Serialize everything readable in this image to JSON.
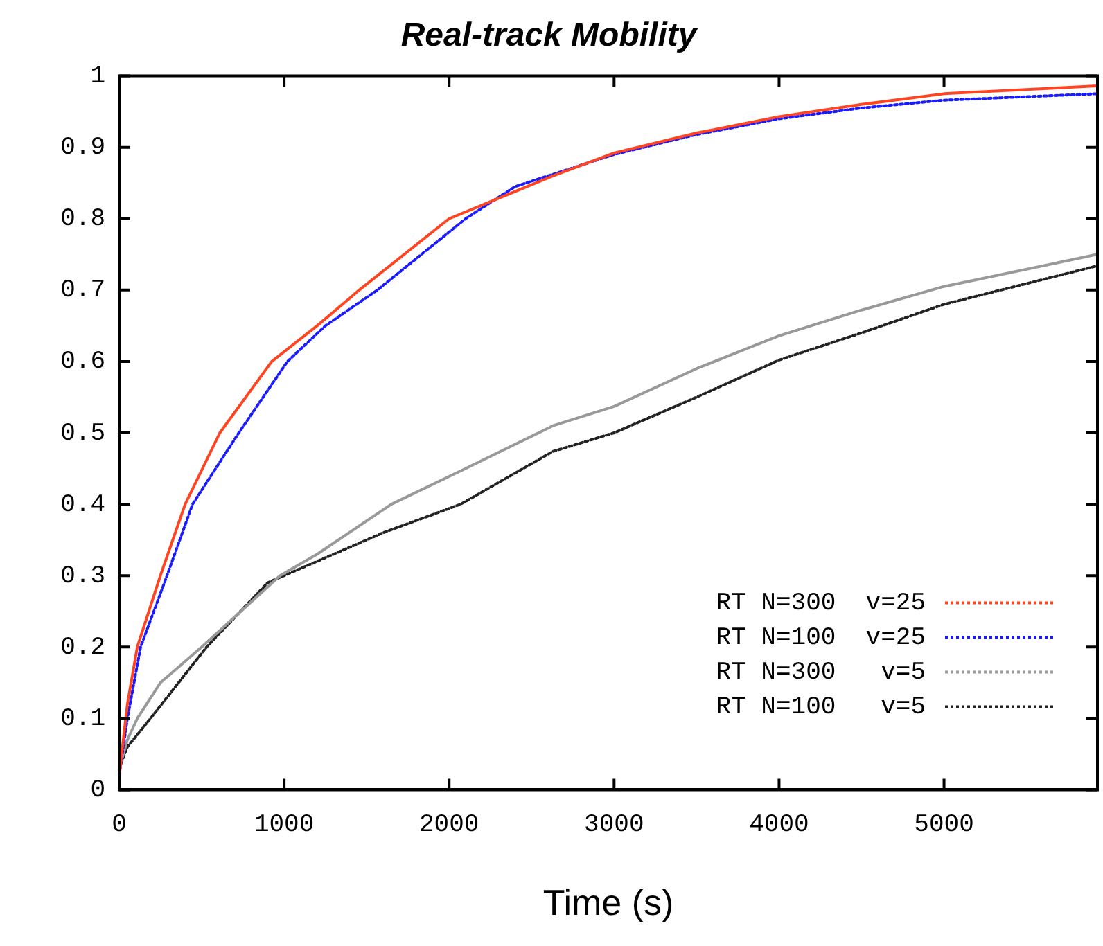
{
  "chart_data": {
    "type": "line",
    "title": "Real-track Mobility",
    "xlabel": "Time (s)",
    "xlim": [
      0,
      5930
    ],
    "xticks": [
      0,
      1000,
      2000,
      3000,
      4000,
      5000
    ],
    "ylim": [
      0,
      1
    ],
    "yticks": [
      0,
      0.1,
      0.2,
      0.3,
      0.4,
      0.5,
      0.6,
      0.7,
      0.8,
      0.9,
      1
    ],
    "grid": false,
    "legend": "bottom right",
    "marker": "none",
    "series": [
      {
        "name": "RT N=300  v=25",
        "color": "#ff4422",
        "line_style": "solid",
        "x": [
          0,
          50,
          110,
          250,
          400,
          610,
          925,
          1200,
          1455,
          2000,
          2630,
          3000,
          3500,
          4000,
          4500,
          5000,
          5930
        ],
        "values": [
          0.02,
          0.12,
          0.2,
          0.3,
          0.4,
          0.5,
          0.6,
          0.65,
          0.7,
          0.8,
          0.86,
          0.892,
          0.92,
          0.943,
          0.96,
          0.975,
          0.986
        ]
      },
      {
        "name": "RT N=100  v=25",
        "color": "#1a1aff",
        "line_style": "dotted",
        "x": [
          0,
          50,
          130,
          290,
          445,
          725,
          1020,
          1250,
          1565,
          2100,
          2400,
          3000,
          3500,
          4000,
          4500,
          5000,
          5930
        ],
        "values": [
          0.02,
          0.1,
          0.2,
          0.3,
          0.4,
          0.5,
          0.6,
          0.65,
          0.7,
          0.8,
          0.845,
          0.89,
          0.918,
          0.94,
          0.955,
          0.966,
          0.975
        ]
      },
      {
        "name": "RT N=300   v=5",
        "color": "#999999",
        "line_style": "solid",
        "x": [
          0,
          50,
          110,
          250,
          500,
          975,
          1200,
          1650,
          2100,
          2630,
          3000,
          3500,
          4000,
          4500,
          5000,
          5930
        ],
        "values": [
          0.03,
          0.07,
          0.1,
          0.15,
          0.2,
          0.3,
          0.33,
          0.4,
          0.45,
          0.51,
          0.537,
          0.59,
          0.636,
          0.672,
          0.705,
          0.75
        ]
      },
      {
        "name": "RT N=100   v=5",
        "color": "#222222",
        "line_style": "dotted",
        "x": [
          0,
          50,
          190,
          530,
          900,
          1200,
          1600,
          2070,
          2630,
          3000,
          3500,
          4000,
          4500,
          5000,
          5930
        ],
        "values": [
          0.03,
          0.06,
          0.1,
          0.2,
          0.29,
          0.32,
          0.36,
          0.4,
          0.474,
          0.5,
          0.55,
          0.602,
          0.64,
          0.68,
          0.734
        ]
      }
    ]
  }
}
